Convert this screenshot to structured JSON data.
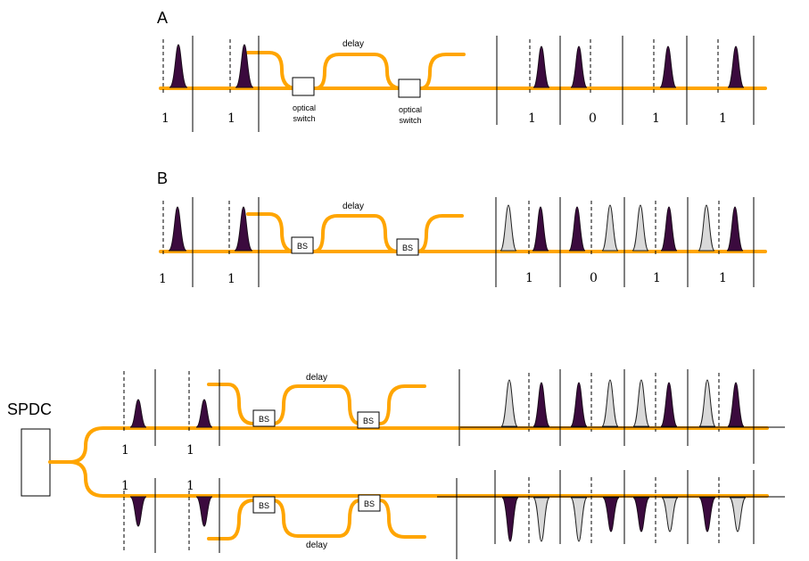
{
  "panels": {
    "a": {
      "label": "A",
      "delay_label": "delay",
      "switch_label_line1": "optical",
      "switch_label_line2": "switch",
      "input_bits": [
        "1",
        "1"
      ],
      "output_bits": [
        "1",
        "0",
        "1",
        "1"
      ]
    },
    "b": {
      "label": "B",
      "delay_label": "delay",
      "bs_label": "BS",
      "input_bits": [
        "1",
        "1"
      ],
      "output_bits": [
        "1",
        "0",
        "1",
        "1"
      ]
    },
    "c": {
      "source_label": "SPDC",
      "delay_label": "delay",
      "bs_label": "BS",
      "upper_input_bits": [
        "1",
        "1"
      ],
      "lower_input_bits": [
        "1",
        "1"
      ]
    }
  },
  "colors": {
    "fiber": "#FFA500",
    "pulse_dark": "#3b0a3e",
    "pulse_light": "#d9d9d9"
  }
}
